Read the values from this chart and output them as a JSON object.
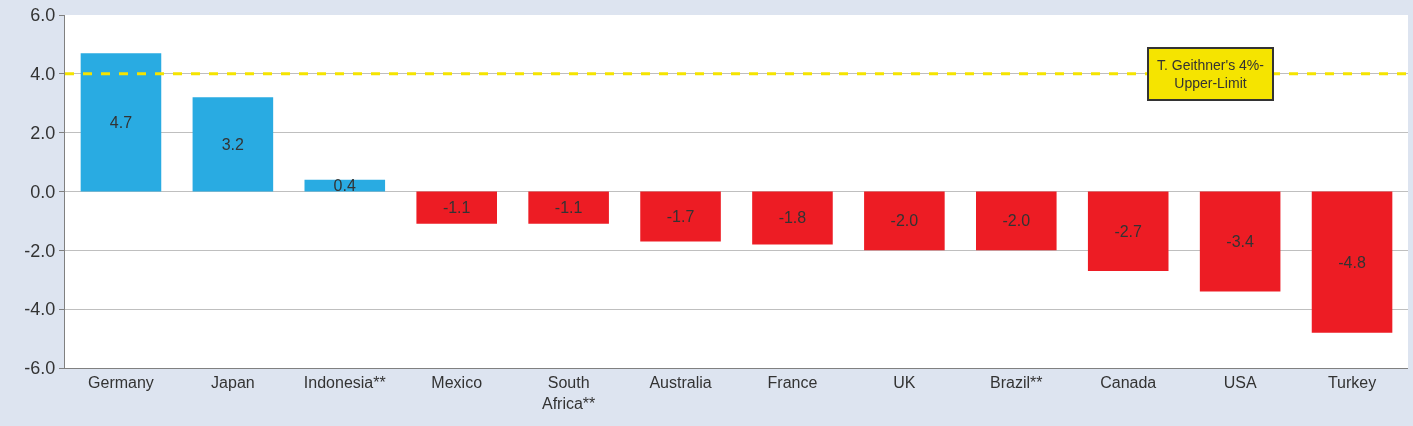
{
  "chart_data": {
    "type": "bar",
    "categories": [
      "Germany",
      "Japan",
      "Indonesia**",
      "Mexico",
      "South Africa**",
      "Australia",
      "France",
      "UK",
      "Brazil**",
      "Canada",
      "USA",
      "Turkey"
    ],
    "values": [
      4.7,
      3.2,
      0.4,
      -1.1,
      -1.1,
      -1.7,
      -1.8,
      -2.0,
      -2.0,
      -2.7,
      -3.4,
      -4.8
    ],
    "colors": [
      "#29abe2",
      "#29abe2",
      "#29abe2",
      "#ed1c24",
      "#ed1c24",
      "#ed1c24",
      "#ed1c24",
      "#ed1c24",
      "#ed1c24",
      "#ed1c24",
      "#ed1c24",
      "#ed1c24"
    ],
    "value_labels": [
      "4.7",
      "3.2",
      "0.4",
      "-1.1",
      "-1.1",
      "-1.7",
      "-1.8",
      "-2.0",
      "-2.0",
      "-2.7",
      "-3.4",
      "-4.8"
    ],
    "ylim": [
      -6,
      6
    ],
    "yticks": [
      {
        "value": -6,
        "label": "-6.0"
      },
      {
        "value": -4,
        "label": "-4.0"
      },
      {
        "value": -2,
        "label": "-2.0"
      },
      {
        "value": 0,
        "label": "0.0"
      },
      {
        "value": 2,
        "label": "2.0"
      },
      {
        "value": 4,
        "label": "4.0"
      },
      {
        "value": 6,
        "label": "6.0"
      }
    ],
    "grid": "y",
    "ref_lines": [
      {
        "axis": "y",
        "value": 4,
        "label": "T. Geithner's 4%-\nUpper-Limit",
        "color": "#f5e400",
        "line_style": "dashed"
      }
    ]
  }
}
